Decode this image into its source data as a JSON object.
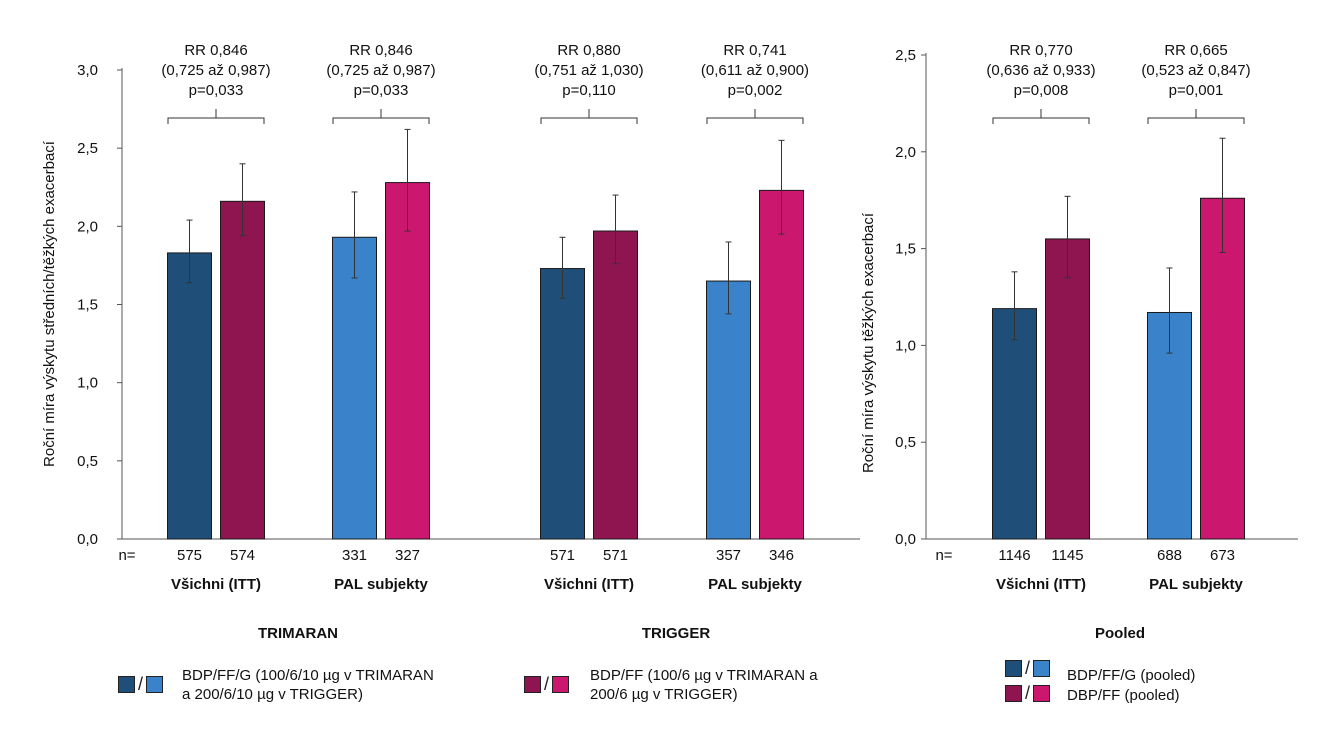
{
  "chart_data": [
    {
      "type": "bar",
      "ylabel": "Roční míra výskytu středních/těžkých exacerbací",
      "ylim": [
        0,
        3.0
      ],
      "yticks": [
        "0,0",
        "0,5",
        "1,0",
        "1,5",
        "2,0",
        "2,5",
        "3,0"
      ],
      "n_label": "n=",
      "studies": [
        {
          "name": "TRIMARAN",
          "groups": [
            {
              "label": "Všichni (ITT)",
              "bars": [
                {
                  "series": "BDP/FF/G",
                  "value": 1.83,
                  "ci_low": 1.64,
                  "ci_high": 2.04,
                  "n": "575",
                  "color": "#1f4e79"
                },
                {
                  "series": "BDP/FF",
                  "value": 2.16,
                  "ci_low": 1.94,
                  "ci_high": 2.4,
                  "n": "574",
                  "color": "#8f1550"
                }
              ],
              "annotation": [
                "RR 0,846",
                "(0,725 až 0,987)",
                "p=0,033"
              ]
            },
            {
              "label": "PAL subjekty",
              "bars": [
                {
                  "series": "BDP/FF/G",
                  "value": 1.93,
                  "ci_low": 1.67,
                  "ci_high": 2.22,
                  "n": "331",
                  "color": "#3a82c9"
                },
                {
                  "series": "BDP/FF",
                  "value": 2.28,
                  "ci_low": 1.97,
                  "ci_high": 2.62,
                  "n": "327",
                  "color": "#cc176e"
                }
              ],
              "annotation": [
                "RR 0,846",
                "(0,725 až 0,987)",
                "p=0,033"
              ]
            }
          ]
        },
        {
          "name": "TRIGGER",
          "groups": [
            {
              "label": "Všichni (ITT)",
              "bars": [
                {
                  "series": "BDP/FF/G",
                  "value": 1.73,
                  "ci_low": 1.54,
                  "ci_high": 1.93,
                  "n": "571",
                  "color": "#1f4e79"
                },
                {
                  "series": "BDP/FF",
                  "value": 1.97,
                  "ci_low": 1.76,
                  "ci_high": 2.2,
                  "n": "571",
                  "color": "#8f1550"
                }
              ],
              "annotation": [
                "RR 0,880",
                "(0,751 až 1,030)",
                "p=0,110"
              ]
            },
            {
              "label": "PAL subjekty",
              "bars": [
                {
                  "series": "BDP/FF/G",
                  "value": 1.65,
                  "ci_low": 1.44,
                  "ci_high": 1.9,
                  "n": "357",
                  "color": "#3a82c9"
                },
                {
                  "series": "BDP/FF",
                  "value": 2.23,
                  "ci_low": 1.95,
                  "ci_high": 2.55,
                  "n": "346",
                  "color": "#cc176e"
                }
              ],
              "annotation": [
                "RR 0,741",
                "(0,611 až 0,900)",
                "p=0,002"
              ]
            }
          ]
        }
      ]
    },
    {
      "type": "bar",
      "ylabel": "Roční míra výskytu těžkých exacerbací",
      "ylim": [
        0,
        2.5
      ],
      "yticks": [
        "0,0",
        "0,5",
        "1,0",
        "1,5",
        "2,0",
        "2,5"
      ],
      "n_label": "n=",
      "studies": [
        {
          "name": "Pooled",
          "groups": [
            {
              "label": "Všichni (ITT)",
              "bars": [
                {
                  "series": "BDP/FF/G (pooled)",
                  "value": 1.19,
                  "ci_low": 1.03,
                  "ci_high": 1.38,
                  "n": "1146",
                  "color": "#1f4e79"
                },
                {
                  "series": "DBP/FF (pooled)",
                  "value": 1.55,
                  "ci_low": 1.35,
                  "ci_high": 1.77,
                  "n": "1145",
                  "color": "#8f1550"
                }
              ],
              "annotation": [
                "RR 0,770",
                "(0,636 až 0,933)",
                "p=0,008"
              ]
            },
            {
              "label": "PAL subjekty",
              "bars": [
                {
                  "series": "BDP/FF/G (pooled)",
                  "value": 1.17,
                  "ci_low": 0.96,
                  "ci_high": 1.4,
                  "n": "688",
                  "color": "#3a82c9"
                },
                {
                  "series": "DBP/FF (pooled)",
                  "value": 1.76,
                  "ci_low": 1.48,
                  "ci_high": 2.07,
                  "n": "673",
                  "color": "#cc176e"
                }
              ],
              "annotation": [
                "RR 0,665",
                "(0,523 až 0,847)",
                "p=0,001"
              ]
            }
          ]
        }
      ]
    }
  ],
  "legend": {
    "left_item": {
      "text_line1": "BDP/FF/G (100/6/10 µg v TRIMARAN",
      "text_line2": "a 200/6/10 µg v TRIGGER)",
      "colors": [
        "#1f4e79",
        "#3a82c9"
      ]
    },
    "middle_item": {
      "text_line1": "BDP/FF (100/6 µg v TRIMARAN a",
      "text_line2": "200/6 µg v TRIGGER)",
      "colors": [
        "#8f1550",
        "#cc176e"
      ]
    },
    "pooled_item_1": {
      "text": "BDP/FF/G (pooled)",
      "colors": [
        "#1f4e79",
        "#3a82c9"
      ]
    },
    "pooled_item_2": {
      "text": "DBP/FF (pooled)",
      "colors": [
        "#8f1550",
        "#cc176e"
      ]
    },
    "slash": "/"
  }
}
